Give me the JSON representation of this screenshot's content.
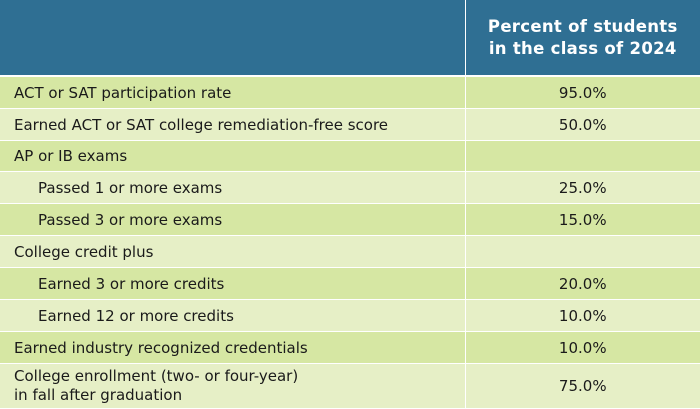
{
  "table": {
    "header": {
      "label_column": "",
      "value_column_line1": "Percent of students",
      "value_column_line2": "in the class of 2024"
    },
    "rows": [
      {
        "label": "ACT or SAT participation rate",
        "value": "95.0%"
      },
      {
        "label": "Earned ACT or SAT college remediation-free score",
        "value": "50.0%"
      },
      {
        "label": "AP or IB exams",
        "value": ""
      },
      {
        "label": "Passed 1 or more exams",
        "value": "25.0%"
      },
      {
        "label": "Passed 3 or more exams",
        "value": "15.0%"
      },
      {
        "label": "College credit plus",
        "value": ""
      },
      {
        "label": "Earned 3 or more credits",
        "value": "20.0%"
      },
      {
        "label": "Earned 12 or more credits",
        "value": "10.0%"
      },
      {
        "label": "Earned industry recognized credentials",
        "value": "10.0%"
      },
      {
        "label_line1": "College enrollment (two- or four-year)",
        "label_line2": "in fall after graduation",
        "value": "75.0%"
      }
    ]
  },
  "colors": {
    "header_background": "#2f6f93",
    "header_text": "#ffffff",
    "row_shade_dark": "#d6e7a3",
    "row_shade_light": "#e6efc6"
  }
}
